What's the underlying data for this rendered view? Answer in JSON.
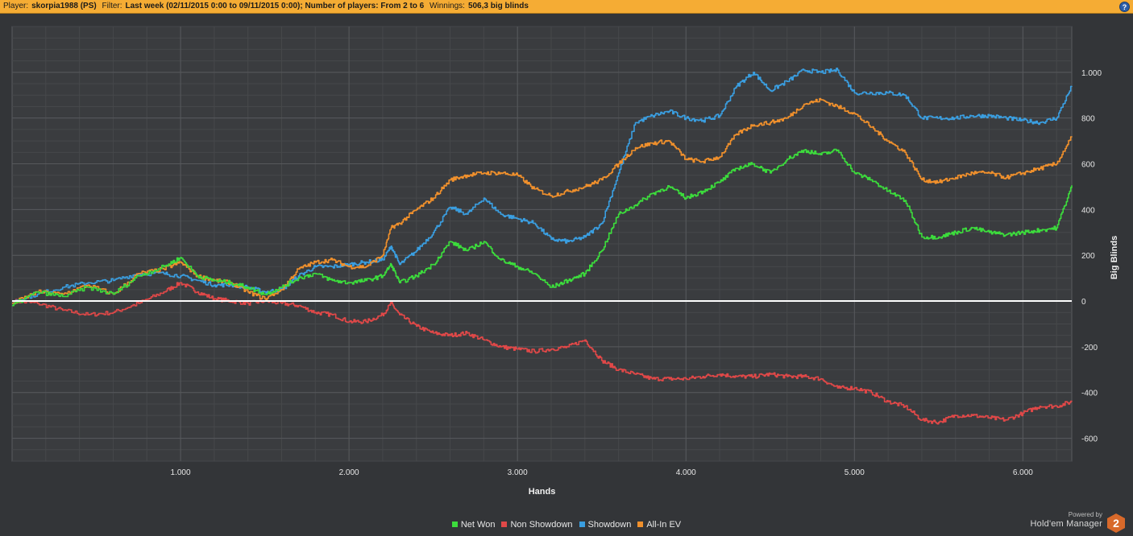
{
  "header": {
    "player_label": "Player:",
    "player_value": "skorpia1988 (PS)",
    "filter_label": "Filter:",
    "filter_value": "Last week (02/11/2015 0:00 to 09/11/2015 0:00); Number of players: From 2 to 6",
    "winnings_label": "Winnings:",
    "winnings_value": "506,3 big blinds",
    "help_glyph": "?"
  },
  "brand": {
    "powered_by": "Powered by",
    "name": "Hold'em Manager",
    "logo_text": "2"
  },
  "chart_data": {
    "type": "line",
    "xlabel": "Hands",
    "ylabel": "Big Blinds",
    "xlim": [
      0,
      6290
    ],
    "ylim": [
      -700,
      1200
    ],
    "x_ticks": [
      1000,
      2000,
      3000,
      4000,
      5000,
      6000
    ],
    "x_tick_labels": [
      "1.000",
      "2.000",
      "3.000",
      "4.000",
      "5.000",
      "6.000"
    ],
    "y_ticks": [
      -600,
      -400,
      -200,
      0,
      200,
      400,
      600,
      800,
      1000
    ],
    "y_tick_labels": [
      "-600",
      "-400",
      "-200",
      "0",
      "200",
      "400",
      "600",
      "800",
      "1.000"
    ],
    "grid": true,
    "zero_line": true,
    "legend_position": "bottom",
    "series": [
      {
        "name": "Net Won",
        "color": "#3cdc3c",
        "points": [
          [
            0,
            -20
          ],
          [
            150,
            40
          ],
          [
            300,
            20
          ],
          [
            450,
            60
          ],
          [
            600,
            30
          ],
          [
            750,
            110
          ],
          [
            900,
            150
          ],
          [
            1000,
            190
          ],
          [
            1100,
            110
          ],
          [
            1200,
            90
          ],
          [
            1300,
            80
          ],
          [
            1400,
            60
          ],
          [
            1500,
            30
          ],
          [
            1600,
            60
          ],
          [
            1700,
            100
          ],
          [
            1800,
            120
          ],
          [
            1900,
            90
          ],
          [
            2000,
            80
          ],
          [
            2100,
            90
          ],
          [
            2200,
            110
          ],
          [
            2250,
            160
          ],
          [
            2300,
            80
          ],
          [
            2400,
            110
          ],
          [
            2500,
            160
          ],
          [
            2600,
            260
          ],
          [
            2700,
            220
          ],
          [
            2800,
            260
          ],
          [
            2900,
            180
          ],
          [
            3000,
            150
          ],
          [
            3100,
            120
          ],
          [
            3200,
            60
          ],
          [
            3300,
            90
          ],
          [
            3400,
            120
          ],
          [
            3500,
            220
          ],
          [
            3600,
            380
          ],
          [
            3700,
            420
          ],
          [
            3800,
            470
          ],
          [
            3900,
            500
          ],
          [
            4000,
            450
          ],
          [
            4100,
            480
          ],
          [
            4200,
            520
          ],
          [
            4300,
            580
          ],
          [
            4400,
            600
          ],
          [
            4500,
            560
          ],
          [
            4600,
            620
          ],
          [
            4700,
            660
          ],
          [
            4800,
            640
          ],
          [
            4900,
            660
          ],
          [
            5000,
            560
          ],
          [
            5100,
            530
          ],
          [
            5200,
            480
          ],
          [
            5300,
            440
          ],
          [
            5400,
            280
          ],
          [
            5500,
            280
          ],
          [
            5600,
            300
          ],
          [
            5700,
            320
          ],
          [
            5800,
            300
          ],
          [
            5900,
            290
          ],
          [
            6000,
            300
          ],
          [
            6100,
            310
          ],
          [
            6200,
            320
          ],
          [
            6290,
            506
          ]
        ]
      },
      {
        "name": "Non Showdown",
        "color": "#e04848",
        "points": [
          [
            0,
            0
          ],
          [
            150,
            -10
          ],
          [
            300,
            -40
          ],
          [
            450,
            -60
          ],
          [
            600,
            -50
          ],
          [
            750,
            -10
          ],
          [
            900,
            40
          ],
          [
            1000,
            80
          ],
          [
            1100,
            40
          ],
          [
            1200,
            10
          ],
          [
            1300,
            0
          ],
          [
            1400,
            -10
          ],
          [
            1500,
            0
          ],
          [
            1600,
            -10
          ],
          [
            1700,
            -20
          ],
          [
            1800,
            -50
          ],
          [
            1900,
            -60
          ],
          [
            2000,
            -90
          ],
          [
            2100,
            -90
          ],
          [
            2200,
            -60
          ],
          [
            2250,
            -10
          ],
          [
            2300,
            -60
          ],
          [
            2400,
            -110
          ],
          [
            2500,
            -140
          ],
          [
            2600,
            -150
          ],
          [
            2700,
            -140
          ],
          [
            2800,
            -170
          ],
          [
            2900,
            -200
          ],
          [
            3000,
            -210
          ],
          [
            3100,
            -220
          ],
          [
            3200,
            -210
          ],
          [
            3300,
            -200
          ],
          [
            3400,
            -170
          ],
          [
            3500,
            -260
          ],
          [
            3600,
            -300
          ],
          [
            3700,
            -320
          ],
          [
            3800,
            -340
          ],
          [
            3900,
            -340
          ],
          [
            4000,
            -340
          ],
          [
            4100,
            -330
          ],
          [
            4200,
            -320
          ],
          [
            4300,
            -330
          ],
          [
            4400,
            -330
          ],
          [
            4500,
            -320
          ],
          [
            4600,
            -330
          ],
          [
            4700,
            -330
          ],
          [
            4800,
            -340
          ],
          [
            4900,
            -380
          ],
          [
            5000,
            -380
          ],
          [
            5100,
            -400
          ],
          [
            5200,
            -440
          ],
          [
            5300,
            -460
          ],
          [
            5400,
            -520
          ],
          [
            5500,
            -530
          ],
          [
            5600,
            -500
          ],
          [
            5700,
            -500
          ],
          [
            5800,
            -510
          ],
          [
            5900,
            -520
          ],
          [
            6000,
            -490
          ],
          [
            6100,
            -460
          ],
          [
            6200,
            -460
          ],
          [
            6290,
            -440
          ]
        ]
      },
      {
        "name": "Showdown",
        "color": "#3a9ee0",
        "points": [
          [
            0,
            0
          ],
          [
            150,
            30
          ],
          [
            300,
            60
          ],
          [
            450,
            80
          ],
          [
            600,
            90
          ],
          [
            750,
            120
          ],
          [
            900,
            120
          ],
          [
            1000,
            110
          ],
          [
            1100,
            90
          ],
          [
            1200,
            70
          ],
          [
            1300,
            70
          ],
          [
            1400,
            60
          ],
          [
            1500,
            40
          ],
          [
            1600,
            50
          ],
          [
            1700,
            110
          ],
          [
            1800,
            150
          ],
          [
            1900,
            150
          ],
          [
            2000,
            160
          ],
          [
            2100,
            170
          ],
          [
            2200,
            180
          ],
          [
            2250,
            240
          ],
          [
            2300,
            160
          ],
          [
            2400,
            220
          ],
          [
            2500,
            300
          ],
          [
            2600,
            410
          ],
          [
            2700,
            380
          ],
          [
            2800,
            450
          ],
          [
            2900,
            380
          ],
          [
            3000,
            360
          ],
          [
            3100,
            340
          ],
          [
            3200,
            270
          ],
          [
            3300,
            260
          ],
          [
            3400,
            280
          ],
          [
            3500,
            340
          ],
          [
            3600,
            560
          ],
          [
            3700,
            780
          ],
          [
            3800,
            810
          ],
          [
            3900,
            830
          ],
          [
            4000,
            800
          ],
          [
            4100,
            790
          ],
          [
            4200,
            810
          ],
          [
            4300,
            940
          ],
          [
            4400,
            1000
          ],
          [
            4500,
            920
          ],
          [
            4600,
            960
          ],
          [
            4700,
            1010
          ],
          [
            4800,
            1000
          ],
          [
            4900,
            1010
          ],
          [
            5000,
            910
          ],
          [
            5100,
            910
          ],
          [
            5200,
            910
          ],
          [
            5300,
            900
          ],
          [
            5400,
            800
          ],
          [
            5500,
            800
          ],
          [
            5600,
            800
          ],
          [
            5700,
            810
          ],
          [
            5800,
            810
          ],
          [
            5900,
            800
          ],
          [
            6000,
            790
          ],
          [
            6100,
            780
          ],
          [
            6200,
            800
          ],
          [
            6290,
            940
          ]
        ]
      },
      {
        "name": "All-In EV",
        "color": "#f0902c",
        "points": [
          [
            0,
            -10
          ],
          [
            150,
            40
          ],
          [
            300,
            30
          ],
          [
            450,
            70
          ],
          [
            600,
            30
          ],
          [
            750,
            120
          ],
          [
            900,
            140
          ],
          [
            1000,
            170
          ],
          [
            1100,
            110
          ],
          [
            1200,
            90
          ],
          [
            1300,
            80
          ],
          [
            1400,
            40
          ],
          [
            1500,
            10
          ],
          [
            1600,
            50
          ],
          [
            1700,
            140
          ],
          [
            1800,
            170
          ],
          [
            1900,
            180
          ],
          [
            2000,
            150
          ],
          [
            2100,
            150
          ],
          [
            2200,
            200
          ],
          [
            2250,
            320
          ],
          [
            2300,
            340
          ],
          [
            2400,
            400
          ],
          [
            2500,
            450
          ],
          [
            2600,
            530
          ],
          [
            2700,
            550
          ],
          [
            2800,
            560
          ],
          [
            2900,
            560
          ],
          [
            3000,
            550
          ],
          [
            3100,
            490
          ],
          [
            3200,
            460
          ],
          [
            3300,
            480
          ],
          [
            3400,
            500
          ],
          [
            3500,
            530
          ],
          [
            3600,
            600
          ],
          [
            3700,
            670
          ],
          [
            3800,
            690
          ],
          [
            3900,
            700
          ],
          [
            4000,
            620
          ],
          [
            4100,
            610
          ],
          [
            4200,
            630
          ],
          [
            4300,
            730
          ],
          [
            4400,
            770
          ],
          [
            4500,
            780
          ],
          [
            4600,
            800
          ],
          [
            4700,
            860
          ],
          [
            4800,
            880
          ],
          [
            4900,
            850
          ],
          [
            5000,
            820
          ],
          [
            5100,
            760
          ],
          [
            5200,
            700
          ],
          [
            5300,
            650
          ],
          [
            5400,
            530
          ],
          [
            5500,
            520
          ],
          [
            5600,
            540
          ],
          [
            5700,
            560
          ],
          [
            5800,
            560
          ],
          [
            5900,
            540
          ],
          [
            6000,
            560
          ],
          [
            6100,
            580
          ],
          [
            6200,
            600
          ],
          [
            6290,
            720
          ]
        ]
      }
    ]
  }
}
